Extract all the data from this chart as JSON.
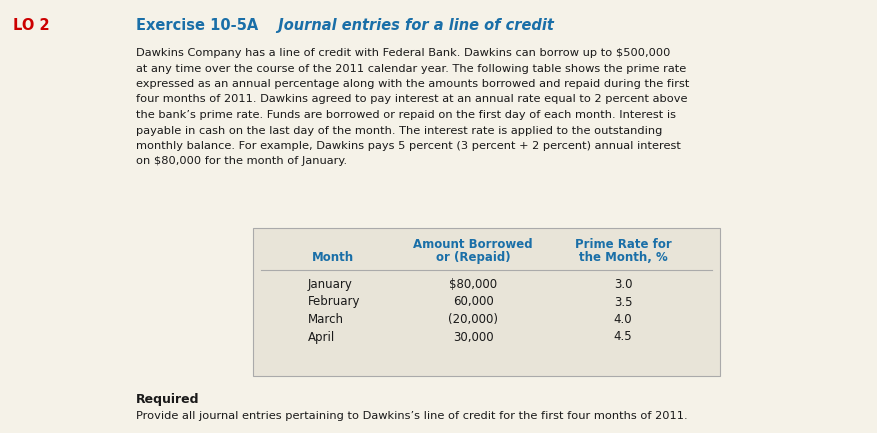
{
  "background_color": "#f5f2e8",
  "lo_label": "LO 2",
  "lo_color": "#cc0000",
  "title_bold": "Exercise 10-5A",
  "title_italic": "  Journal entries for a line of credit",
  "title_color": "#1a6fa8",
  "body_lines": [
    "Dawkins Company has a line of credit with Federal Bank. Dawkins can borrow up to $500,000",
    "at any time over the course of the 2011 calendar year. The following table shows the prime rate",
    "expressed as an annual percentage along with the amounts borrowed and repaid during the first",
    "four months of 2011. Dawkins agreed to pay interest at an annual rate equal to 2 percent above",
    "the bank’s prime rate. Funds are borrowed or repaid on the first day of each month. Interest is",
    "payable in cash on the last day of the month. The interest rate is applied to the outstanding",
    "monthly balance. For example, Dawkins pays 5 percent (3 percent + 2 percent) annual interest",
    "on $80,000 for the month of January."
  ],
  "table_col1_header": "Month",
  "table_col2_header_line1": "Amount Borrowed",
  "table_col2_header_line2": "or (Repaid)",
  "table_col3_header_line1": "Prime Rate for",
  "table_col3_header_line2": "the Month, %",
  "table_header_color": "#1a6fa8",
  "table_months": [
    "January",
    "February",
    "March",
    "April"
  ],
  "table_amounts": [
    "$80,000",
    "60,000",
    "(20,000)",
    "30,000"
  ],
  "table_rates": [
    "3.0",
    "3.5",
    "4.0",
    "4.5"
  ],
  "required_label": "Required",
  "required_text": "Provide all journal entries pertaining to Dawkins’s line of credit for the first four months of 2011.",
  "table_bg": "#e8e4d8",
  "table_border_color": "#aaaaaa",
  "body_text_color": "#1a1a1a",
  "body_fontsize": 8.2,
  "title_fontsize": 10.5,
  "lo_fontsize": 10.5
}
